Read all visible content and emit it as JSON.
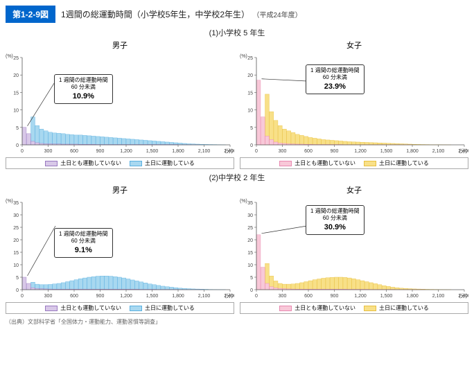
{
  "figure_badge": "第1-2-9図",
  "figure_title": "1週間の総運動時間（小学校5年生，中学校2年生）",
  "figure_year": "（平成24年度）",
  "section1_title": "(1)小学校 5 年生",
  "section2_title": "(2)中学校 2 年生",
  "gender_male": "男子",
  "gender_female": "女子",
  "y_unit": "(%)",
  "x_unit": "(分)",
  "legend_a": "土日とも運動していない",
  "legend_b": "土日に運動している",
  "callout_line1": "1 週間の総運動時間",
  "callout_line2": "60 分未満",
  "source": "（出典）文部科学省「全国体力・運動能力、運動習慣等調査」",
  "colors": {
    "male_a_fill": "#d8c8e8",
    "male_a_stroke": "#9878c0",
    "male_b_fill": "#a8d8f0",
    "male_b_stroke": "#5ab0e0",
    "female_a_fill": "#f8c8d8",
    "female_a_stroke": "#e888b0",
    "female_b_fill": "#f8e088",
    "female_b_stroke": "#e8c040",
    "axis": "#555555",
    "tick_text": "#444444",
    "callout_border": "#333333"
  },
  "axes": {
    "elem": {
      "ylim": [
        0,
        25
      ],
      "ystep": 5
    },
    "jhs": {
      "ylim": [
        0,
        35
      ],
      "ystep": 5
    },
    "xlim": [
      0,
      2400
    ],
    "xstep": 300
  },
  "charts": {
    "elem_male": {
      "callout_pct": "10.9%",
      "a": [
        5.0,
        3.2,
        1.0,
        0.6,
        0.4,
        0.3,
        0.3,
        0.25,
        0.25,
        0.2,
        0.2,
        0.2,
        0.2,
        0.15,
        0.15,
        0.15,
        0.15,
        0.1,
        0.1,
        0.1,
        0.1,
        0.1,
        0.1,
        0.1,
        0.1,
        0.1,
        0.1,
        0.1,
        0.1,
        0.1,
        0.1,
        0.1,
        0.1,
        0.1,
        0.1,
        0.1,
        0.05,
        0.05,
        0.05,
        0.05,
        0.05,
        0,
        0,
        0,
        0,
        0,
        0,
        0
      ],
      "b": [
        0,
        1.5,
        8.0,
        5.5,
        4.5,
        4.0,
        3.6,
        3.4,
        3.3,
        3.2,
        3.0,
        2.9,
        2.8,
        2.8,
        2.7,
        2.6,
        2.5,
        2.4,
        2.3,
        2.2,
        2.1,
        2.0,
        1.9,
        1.8,
        1.7,
        1.6,
        1.5,
        1.4,
        1.3,
        1.2,
        1.1,
        1.0,
        0.9,
        0.8,
        0.7,
        0.6,
        0.5,
        0.4,
        0.3,
        0.25,
        0.2,
        0.15,
        0.12,
        0.1,
        0.08,
        0.05,
        0.03,
        0
      ]
    },
    "elem_female": {
      "callout_pct": "23.9%",
      "a": [
        18.5,
        8.0,
        2.5,
        1.5,
        0.8,
        0.5,
        0.4,
        0.3,
        0.25,
        0.2,
        0.2,
        0.15,
        0.15,
        0.1,
        0.1,
        0.1,
        0.1,
        0.1,
        0.1,
        0.1,
        0.05,
        0.05,
        0.05,
        0.05,
        0.05,
        0.05,
        0.05,
        0.05,
        0.05,
        0.05,
        0.05,
        0.05,
        0.05,
        0.03,
        0.03,
        0.03,
        0,
        0,
        0,
        0,
        0,
        0,
        0,
        0,
        0,
        0,
        0,
        0
      ],
      "b": [
        0,
        2.0,
        14.5,
        9.5,
        7.0,
        5.5,
        4.5,
        4.0,
        3.5,
        3.0,
        2.7,
        2.4,
        2.1,
        1.9,
        1.7,
        1.5,
        1.4,
        1.3,
        1.2,
        1.1,
        1.0,
        0.9,
        0.85,
        0.8,
        0.75,
        0.7,
        0.65,
        0.6,
        0.55,
        0.5,
        0.45,
        0.4,
        0.35,
        0.3,
        0.25,
        0.2,
        0.15,
        0.12,
        0.1,
        0.08,
        0.06,
        0.05,
        0.04,
        0.03,
        0.02,
        0,
        0,
        0
      ]
    },
    "jhs_male": {
      "callout_pct": "9.1%",
      "a": [
        5.0,
        2.5,
        0.8,
        0.5,
        0.4,
        0.3,
        0.25,
        0.2,
        0.2,
        0.2,
        0.2,
        0.2,
        0.2,
        0.2,
        0.2,
        0.2,
        0.2,
        0.2,
        0.2,
        0.2,
        0.2,
        0.2,
        0.2,
        0.2,
        0.2,
        0.2,
        0.2,
        0.15,
        0.15,
        0.15,
        0.15,
        0.1,
        0.1,
        0.1,
        0.1,
        0.1,
        0.05,
        0.05,
        0.05,
        0.05,
        0.05,
        0.05,
        0,
        0,
        0,
        0,
        0,
        0
      ],
      "b": [
        0,
        0.8,
        3.0,
        2.2,
        2.0,
        2.0,
        2.1,
        2.3,
        2.5,
        2.8,
        3.2,
        3.6,
        4.0,
        4.4,
        4.7,
        5.0,
        5.2,
        5.4,
        5.5,
        5.5,
        5.4,
        5.2,
        5.0,
        4.7,
        4.3,
        3.9,
        3.5,
        3.1,
        2.7,
        2.3,
        2.0,
        1.7,
        1.4,
        1.2,
        1.0,
        0.8,
        0.6,
        0.5,
        0.4,
        0.3,
        0.25,
        0.2,
        0.15,
        0.1,
        0.08,
        0.05,
        0.03,
        0
      ]
    },
    "jhs_female": {
      "callout_pct": "30.9%",
      "a": [
        22.0,
        9.0,
        2.5,
        1.2,
        0.7,
        0.5,
        0.4,
        0.3,
        0.25,
        0.2,
        0.2,
        0.2,
        0.2,
        0.2,
        0.2,
        0.2,
        0.2,
        0.2,
        0.2,
        0.2,
        0.2,
        0.15,
        0.15,
        0.15,
        0.15,
        0.15,
        0.1,
        0.1,
        0.1,
        0.1,
        0.1,
        0.1,
        0.05,
        0.05,
        0.05,
        0.05,
        0.05,
        0.03,
        0.03,
        0,
        0,
        0,
        0,
        0,
        0,
        0,
        0,
        0
      ],
      "b": [
        0,
        2.0,
        10.5,
        5.5,
        3.5,
        2.5,
        2.2,
        2.2,
        2.3,
        2.5,
        2.8,
        3.2,
        3.6,
        4.0,
        4.3,
        4.6,
        4.8,
        4.9,
        5.0,
        5.0,
        4.9,
        4.7,
        4.4,
        4.0,
        3.6,
        3.2,
        2.8,
        2.4,
        2.0,
        1.6,
        1.3,
        1.0,
        0.8,
        0.6,
        0.5,
        0.4,
        0.3,
        0.25,
        0.2,
        0.15,
        0.12,
        0.1,
        0.08,
        0.05,
        0.03,
        0,
        0,
        0
      ]
    }
  }
}
